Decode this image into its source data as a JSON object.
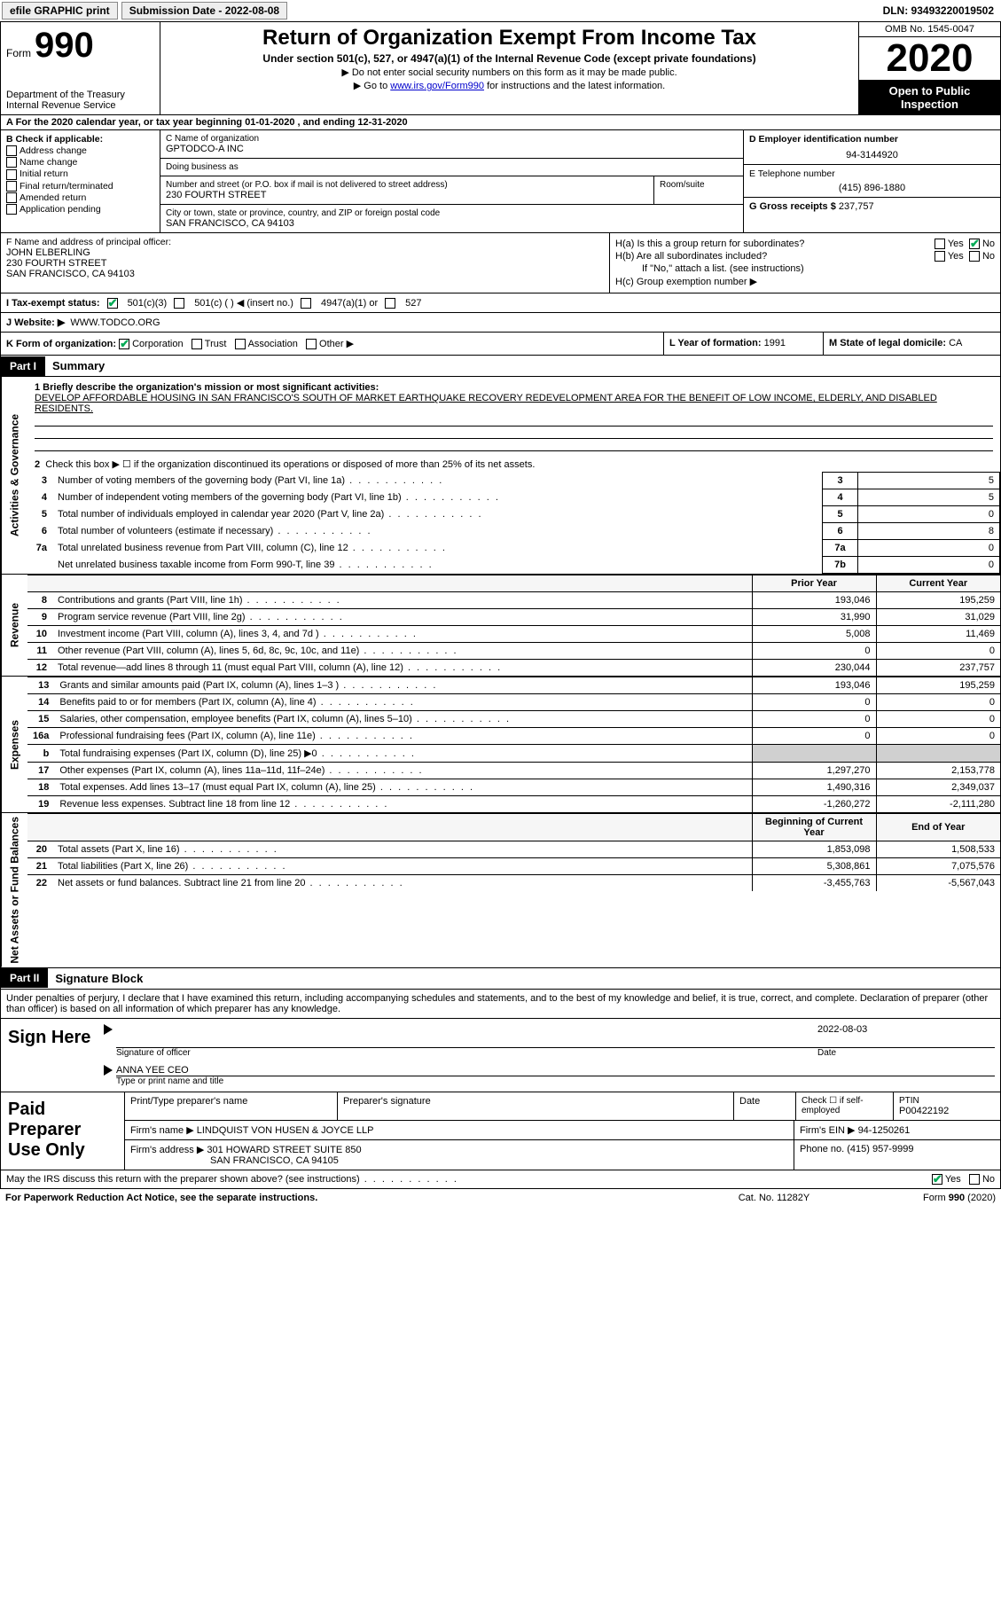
{
  "colors": {
    "link": "#0000cc",
    "black": "#000000",
    "white": "#ffffff",
    "shade": "#d0d0d0",
    "check": "#00aa55"
  },
  "top": {
    "efile": "efile GRAPHIC print",
    "sub_date": "Submission Date - 2022-08-08",
    "dln": "DLN: 93493220019502"
  },
  "header": {
    "form_prefix": "Form",
    "form_number": "990",
    "dept": "Department of the Treasury\nInternal Revenue Service",
    "title": "Return of Organization Exempt From Income Tax",
    "sub": "Under section 501(c), 527, or 4947(a)(1) of the Internal Revenue Code (except private foundations)",
    "note1": "▶ Do not enter social security numbers on this form as it may be made public.",
    "note2_pre": "▶ Go to ",
    "note2_link": "www.irs.gov/Form990",
    "note2_post": " for instructions and the latest information.",
    "omb": "OMB No. 1545-0047",
    "year": "2020",
    "open": "Open to Public Inspection"
  },
  "period": "A For the 2020 calendar year, or tax year beginning 01-01-2020   , and ending 12-31-2020",
  "boxB": {
    "label": "B Check if applicable:",
    "items": [
      "Address change",
      "Name change",
      "Initial return",
      "Final return/terminated",
      "Amended return",
      "Application pending"
    ]
  },
  "boxC": {
    "name_label": "C Name of organization",
    "name": "GPTODCO-A INC",
    "dba_label": "Doing business as",
    "dba": "",
    "addr_label": "Number and street (or P.O. box if mail is not delivered to street address)",
    "room_label": "Room/suite",
    "addr": "230 FOURTH STREET",
    "city_label": "City or town, state or province, country, and ZIP or foreign postal code",
    "city": "SAN FRANCISCO, CA  94103"
  },
  "boxD": {
    "ein_label": "D Employer identification number",
    "ein": "94-3144920",
    "phone_label": "E Telephone number",
    "phone": "(415) 896-1880",
    "gross_label": "G Gross receipts $",
    "gross": "237,757"
  },
  "boxF": {
    "label": "F Name and address of principal officer:",
    "name": "JOHN ELBERLING",
    "addr1": "230 FOURTH STREET",
    "addr2": "SAN FRANCISCO, CA  94103"
  },
  "boxH": {
    "ha": "H(a)  Is this a group return for subordinates?",
    "hb": "H(b)  Are all subordinates included?",
    "hb_note": "If \"No,\" attach a list. (see instructions)",
    "hc": "H(c)  Group exemption number ▶",
    "yes": "Yes",
    "no": "No"
  },
  "boxI": {
    "label": "I   Tax-exempt status:",
    "opts": [
      "501(c)(3)",
      "501(c) (  )  ◀ (insert no.)",
      "4947(a)(1) or",
      "527"
    ]
  },
  "boxJ": {
    "label": "J   Website: ▶",
    "value": "WWW.TODCO.ORG"
  },
  "boxK": {
    "label": "K Form of organization:",
    "opts": [
      "Corporation",
      "Trust",
      "Association",
      "Other ▶"
    ],
    "year_label": "L Year of formation:",
    "year": "1991",
    "state_label": "M State of legal domicile:",
    "state": "CA"
  },
  "part1": {
    "tab": "Part I",
    "title": "Summary",
    "mission_label": "1  Briefly describe the organization's mission or most significant activities:",
    "mission": "DEVELOP AFFORDABLE HOUSING IN SAN FRANCISCO'S SOUTH OF MARKET EARTHQUAKE RECOVERY REDEVELOPMENT AREA FOR THE BENEFIT OF LOW INCOME, ELDERLY, AND DISABLED RESIDENTS.",
    "line2": "Check this box ▶ ☐  if the organization discontinued its operations or disposed of more than 25% of its net assets.",
    "gov_side": "Activities & Governance",
    "rev_side": "Revenue",
    "exp_side": "Expenses",
    "net_side": "Net Assets or Fund Balances",
    "gov_rows": [
      {
        "n": "3",
        "t": "Number of voting members of the governing body (Part VI, line 1a)",
        "box": "3",
        "v": "5"
      },
      {
        "n": "4",
        "t": "Number of independent voting members of the governing body (Part VI, line 1b)",
        "box": "4",
        "v": "5"
      },
      {
        "n": "5",
        "t": "Total number of individuals employed in calendar year 2020 (Part V, line 2a)",
        "box": "5",
        "v": "0"
      },
      {
        "n": "6",
        "t": "Total number of volunteers (estimate if necessary)",
        "box": "6",
        "v": "8"
      },
      {
        "n": "7a",
        "t": "Total unrelated business revenue from Part VIII, column (C), line 12",
        "box": "7a",
        "v": "0"
      },
      {
        "n": "",
        "t": "Net unrelated business taxable income from Form 990-T, line 39",
        "box": "7b",
        "v": "0"
      }
    ],
    "col_prior": "Prior Year",
    "col_curr": "Current Year",
    "rev_rows": [
      {
        "n": "8",
        "t": "Contributions and grants (Part VIII, line 1h)",
        "p": "193,046",
        "c": "195,259"
      },
      {
        "n": "9",
        "t": "Program service revenue (Part VIII, line 2g)",
        "p": "31,990",
        "c": "31,029"
      },
      {
        "n": "10",
        "t": "Investment income (Part VIII, column (A), lines 3, 4, and 7d )",
        "p": "5,008",
        "c": "11,469"
      },
      {
        "n": "11",
        "t": "Other revenue (Part VIII, column (A), lines 5, 6d, 8c, 9c, 10c, and 11e)",
        "p": "0",
        "c": "0"
      },
      {
        "n": "12",
        "t": "Total revenue—add lines 8 through 11 (must equal Part VIII, column (A), line 12)",
        "p": "230,044",
        "c": "237,757"
      }
    ],
    "exp_rows": [
      {
        "n": "13",
        "t": "Grants and similar amounts paid (Part IX, column (A), lines 1–3 )",
        "p": "193,046",
        "c": "195,259"
      },
      {
        "n": "14",
        "t": "Benefits paid to or for members (Part IX, column (A), line 4)",
        "p": "0",
        "c": "0"
      },
      {
        "n": "15",
        "t": "Salaries, other compensation, employee benefits (Part IX, column (A), lines 5–10)",
        "p": "0",
        "c": "0"
      },
      {
        "n": "16a",
        "t": "Professional fundraising fees (Part IX, column (A), line 11e)",
        "p": "0",
        "c": "0"
      },
      {
        "n": "b",
        "t": "Total fundraising expenses (Part IX, column (D), line 25) ▶0",
        "p": "",
        "c": "",
        "shade": true
      },
      {
        "n": "17",
        "t": "Other expenses (Part IX, column (A), lines 11a–11d, 11f–24e)",
        "p": "1,297,270",
        "c": "2,153,778"
      },
      {
        "n": "18",
        "t": "Total expenses. Add lines 13–17 (must equal Part IX, column (A), line 25)",
        "p": "1,490,316",
        "c": "2,349,037"
      },
      {
        "n": "19",
        "t": "Revenue less expenses. Subtract line 18 from line 12",
        "p": "-1,260,272",
        "c": "-2,111,280"
      }
    ],
    "col_beg": "Beginning of Current Year",
    "col_end": "End of Year",
    "net_rows": [
      {
        "n": "20",
        "t": "Total assets (Part X, line 16)",
        "p": "1,853,098",
        "c": "1,508,533"
      },
      {
        "n": "21",
        "t": "Total liabilities (Part X, line 26)",
        "p": "5,308,861",
        "c": "7,075,576"
      },
      {
        "n": "22",
        "t": "Net assets or fund balances. Subtract line 21 from line 20",
        "p": "-3,455,763",
        "c": "-5,567,043"
      }
    ]
  },
  "part2": {
    "tab": "Part II",
    "title": "Signature Block",
    "decl": "Under penalties of perjury, I declare that I have examined this return, including accompanying schedules and statements, and to the best of my knowledge and belief, it is true, correct, and complete. Declaration of preparer (other than officer) is based on all information of which preparer has any knowledge."
  },
  "sign": {
    "label": "Sign Here",
    "sig_officer": "Signature of officer",
    "date_label": "Date",
    "date": "2022-08-03",
    "name": "ANNA YEE CEO",
    "name_label": "Type or print name and title"
  },
  "paid": {
    "label": "Paid Preparer Use Only",
    "h1": "Print/Type preparer's name",
    "h2": "Preparer's signature",
    "h3": "Date",
    "h4_a": "Check ☐ if self-employed",
    "h4_b": "PTIN",
    "ptin": "P00422192",
    "firm_label": "Firm's name    ▶",
    "firm": "LINDQUIST VON HUSEN & JOYCE LLP",
    "ein_label": "Firm's EIN ▶",
    "ein": "94-1250261",
    "addr_label": "Firm's address ▶",
    "addr1": "301 HOWARD STREET SUITE 850",
    "addr2": "SAN FRANCISCO, CA  94105",
    "phone_label": "Phone no.",
    "phone": "(415) 957-9999"
  },
  "discuss": "May the IRS discuss this return with the preparer shown above? (see instructions)",
  "footer": {
    "left": "For Paperwork Reduction Act Notice, see the separate instructions.",
    "mid": "Cat. No. 11282Y",
    "right": "Form 990 (2020)"
  }
}
